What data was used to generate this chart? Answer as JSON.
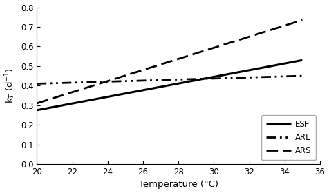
{
  "title": "",
  "xlabel": "Temperature (°C)",
  "ylabel": "k$_T$ (d$^{-1}$)",
  "xlim": [
    20,
    36
  ],
  "ylim": [
    0.0,
    0.8
  ],
  "xticks": [
    20,
    22,
    24,
    26,
    28,
    30,
    32,
    34,
    36
  ],
  "yticks": [
    0.0,
    0.1,
    0.2,
    0.3,
    0.4,
    0.5,
    0.6,
    0.7,
    0.8
  ],
  "lines": [
    {
      "label": "ESF",
      "x": [
        20,
        35
      ],
      "y": [
        0.275,
        0.53
      ],
      "linestyle": "solid",
      "linewidth": 2.2,
      "color": "#000000"
    },
    {
      "label": "ARL",
      "x": [
        20,
        35
      ],
      "y": [
        0.41,
        0.45
      ],
      "linestyle": "dashdot2",
      "linewidth": 2.0,
      "color": "#000000"
    },
    {
      "label": "ARS",
      "x": [
        20,
        35
      ],
      "y": [
        0.31,
        0.735
      ],
      "linestyle": "dashed",
      "linewidth": 2.0,
      "color": "#000000"
    }
  ],
  "legend_loc": "lower right",
  "legend_fontsize": 8.5,
  "tick_fontsize": 8.5,
  "label_fontsize": 9.5,
  "background_color": "#ffffff"
}
